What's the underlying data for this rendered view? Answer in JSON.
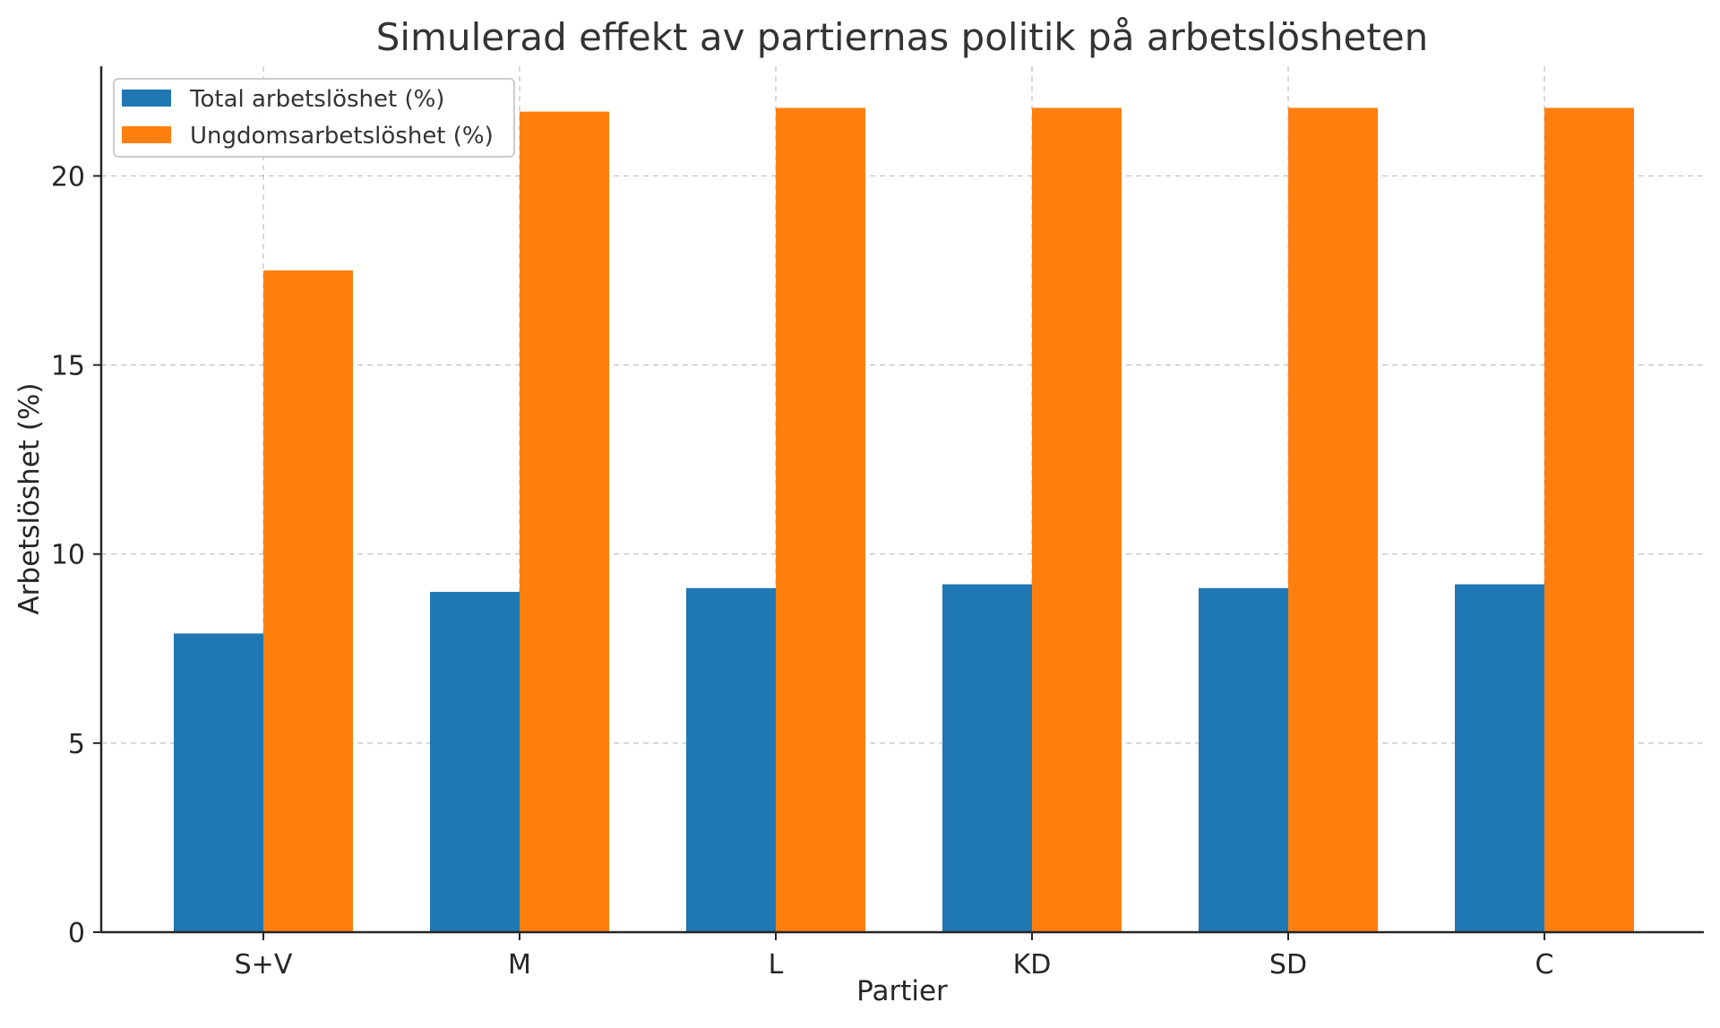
{
  "chart_data": {
    "type": "bar",
    "title": "Simulerad effekt av partiernas politik på arbetslösheten",
    "xlabel": "Partier",
    "ylabel": "Arbetslöshet (%)",
    "categories": [
      "S+V",
      "M",
      "L",
      "KD",
      "SD",
      "C"
    ],
    "series": [
      {
        "name": "Total arbetslöshet (%)",
        "color": "#1f77b4",
        "values": [
          7.9,
          9.0,
          9.1,
          9.2,
          9.1,
          9.2
        ]
      },
      {
        "name": "Ungdomsarbetslöshet (%)",
        "color": "#ff7f0e",
        "values": [
          17.5,
          21.7,
          21.8,
          21.8,
          21.8,
          21.8
        ]
      }
    ],
    "ylim": [
      0,
      22.9
    ],
    "yticks": [
      0,
      5,
      10,
      15,
      20
    ],
    "grid": true,
    "legend_position": "top-left"
  }
}
